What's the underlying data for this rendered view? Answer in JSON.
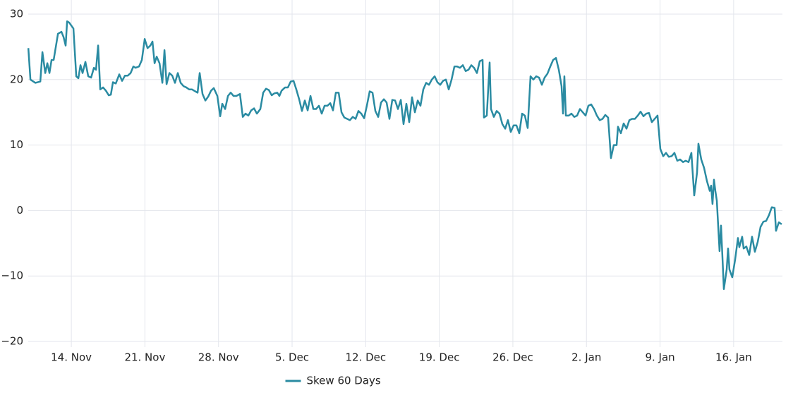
{
  "chart_data": {
    "type": "line",
    "series": [
      {
        "name": "Skew 60 Days",
        "color": "#2a8ba2",
        "x": [
          9.91,
          10.11,
          10.58,
          11.05,
          11.25,
          11.52,
          11.72,
          11.92,
          12.12,
          12.32,
          12.73,
          13.06,
          13.26,
          13.46,
          13.6,
          13.8,
          14.2,
          14.47,
          14.67,
          14.87,
          15.07,
          15.34,
          15.61,
          15.88,
          16.15,
          16.35,
          16.55,
          16.75,
          17.02,
          17.29,
          17.56,
          17.76,
          17.96,
          18.23,
          18.56,
          18.83,
          19.1,
          19.37,
          19.64,
          19.9,
          20.11,
          20.44,
          20.71,
          20.98,
          21.25,
          21.52,
          21.72,
          21.92,
          22.12,
          22.39,
          22.66,
          22.86,
          23.06,
          23.33,
          23.6,
          23.86,
          24.13,
          24.4,
          24.67,
          24.94,
          25.21,
          25.47,
          26.01,
          26.21,
          26.48,
          26.75,
          27.02,
          27.29,
          27.55,
          27.89,
          28.16,
          28.36,
          28.63,
          28.9,
          29.16,
          29.43,
          29.7,
          30.04,
          30.31,
          30.57,
          30.84,
          31.11,
          31.38,
          31.65,
          31.98,
          32.25,
          32.52,
          32.79,
          33.06,
          33.32,
          33.59,
          33.79,
          34.0,
          34.33,
          34.6,
          34.87,
          35.14,
          35.4,
          35.67,
          35.94,
          36.21,
          36.48,
          36.75,
          37.02,
          37.28,
          37.55,
          37.82,
          38.09,
          38.36,
          38.63,
          38.89,
          39.16,
          39.43,
          39.7,
          39.97,
          40.24,
          40.5,
          40.77,
          41.04,
          41.31,
          41.58,
          41.85,
          42.11,
          42.38,
          42.65,
          42.92,
          43.19,
          43.46,
          43.73,
          43.99,
          44.26,
          44.53,
          44.8,
          45.07,
          45.34,
          45.6,
          45.87,
          46.14,
          46.41,
          46.68,
          46.95,
          47.21,
          47.48,
          47.75,
          48.02,
          48.29,
          48.56,
          48.82,
          49.09,
          49.36,
          49.63,
          49.9,
          50.17,
          50.44,
          50.7,
          50.97,
          51.24,
          51.51,
          51.78,
          52.05,
          52.31,
          52.58,
          52.85,
          53.12,
          53.25,
          53.52,
          53.79,
          53.92,
          54.19,
          54.46,
          54.73,
          55.0,
          55.27,
          55.53,
          55.8,
          56.07,
          56.34,
          56.61,
          56.88,
          57.14,
          57.41,
          57.68,
          57.95,
          58.22,
          58.49,
          58.76,
          59.02,
          59.29,
          59.56,
          59.83,
          60.1,
          60.37,
          60.63,
          60.77,
          60.9,
          61.04,
          61.31,
          61.57,
          61.84,
          62.11,
          62.38,
          62.65,
          62.92,
          63.18,
          63.45,
          63.72,
          63.99,
          64.26,
          64.53,
          64.79,
          65.06,
          65.33,
          65.6,
          65.87,
          66.0,
          66.27,
          66.54,
          66.81,
          67.08,
          67.34,
          67.61,
          67.88,
          68.15,
          68.42,
          68.69,
          68.95,
          69.22,
          69.49,
          69.76,
          70.03,
          70.3,
          70.57,
          70.83,
          71.1,
          71.37,
          71.64,
          71.91,
          72.18,
          72.44,
          72.71,
          72.98,
          73.25,
          73.52,
          73.65,
          73.92,
          74.19,
          74.46,
          74.73,
          74.86,
          74.99,
          75.13,
          75.26,
          75.4,
          75.66,
          75.8,
          76.07,
          76.34,
          76.47,
          76.6,
          76.87,
          77.14,
          77.41,
          77.54,
          77.81,
          77.95,
          78.21,
          78.48,
          78.75,
          79.02,
          79.29,
          79.56,
          79.83,
          80.09,
          80.36,
          80.63,
          80.9,
          81.03,
          81.3,
          81.57
        ],
        "values": [
          24.8,
          20,
          19.5,
          19.7,
          24.2,
          21,
          22.5,
          21,
          23,
          23,
          27,
          27.3,
          26.5,
          25.2,
          28.9,
          28.7,
          27.8,
          20.5,
          20.2,
          22.2,
          21,
          22.7,
          20.5,
          20.3,
          21.8,
          21.5,
          25.2,
          18.5,
          18.8,
          18.3,
          17.6,
          17.7,
          19.6,
          19.4,
          20.8,
          19.8,
          20.6,
          20.6,
          21,
          22,
          21.8,
          22,
          23,
          26.2,
          24.8,
          25.2,
          25.8,
          22.5,
          23.5,
          22.5,
          19.5,
          24.5,
          19.3,
          21,
          20.6,
          19.5,
          21,
          19.5,
          19,
          18.8,
          18.5,
          18.5,
          18,
          21,
          17.8,
          16.8,
          17.4,
          18.3,
          18.7,
          17.5,
          14.4,
          16.3,
          15.5,
          17.5,
          18,
          17.5,
          17.5,
          17.8,
          14.3,
          14.8,
          14.5,
          15.3,
          15.6,
          14.8,
          15.5,
          18,
          18.6,
          18.4,
          17.6,
          17.9,
          18,
          17.5,
          18.3,
          18.8,
          18.8,
          19.7,
          19.8,
          18.5,
          17,
          15.2,
          16.8,
          15.3,
          17.5,
          15.5,
          15.5,
          16,
          14.8,
          16,
          16,
          16.4,
          15.3,
          18,
          18,
          15,
          14.2,
          14,
          13.8,
          14.3,
          14,
          15.2,
          14.8,
          14.1,
          16,
          18.2,
          18,
          15.2,
          14.3,
          16.5,
          17,
          16.5,
          14,
          16.9,
          16.8,
          15.5,
          16.9,
          13.2,
          16.3,
          13.5,
          17.3,
          15,
          16.8,
          16,
          18.5,
          19.5,
          19.2,
          20,
          20.5,
          19.6,
          19.2,
          19.8,
          20,
          18.5,
          20,
          22,
          22,
          21.8,
          22.2,
          21.3,
          21.5,
          22.2,
          21.8,
          21,
          22.8,
          23,
          14.2,
          14.5,
          22.6,
          15.5,
          14.3,
          15.2,
          14.8,
          13.2,
          12.5,
          13.8,
          12,
          13,
          13,
          11.8,
          14.8,
          14.5,
          12.6,
          20.5,
          20,
          20.5,
          20.3,
          19.2,
          20.3,
          20.9,
          22,
          23,
          23.3,
          21.5,
          19,
          14.8,
          20.5,
          14.5,
          14.5,
          14.8,
          14.3,
          14.5,
          15.5,
          15,
          14.5,
          16,
          16.2,
          15.5,
          14.5,
          13.8,
          14,
          14.6,
          14.2,
          8,
          10,
          10,
          12.8,
          11.8,
          13.3,
          12.5,
          13.8,
          14,
          14,
          14.5,
          15.1,
          14.4,
          14.8,
          14.9,
          13.5,
          14,
          14.5,
          9.4,
          8.3,
          8.8,
          8.2,
          8.3,
          8.8,
          7.6,
          7.8,
          7.4,
          7.6,
          7.4,
          8.8,
          2.3,
          5.8,
          10.2,
          7.8,
          6.5,
          4.5,
          3,
          3.8,
          1,
          4.7,
          3,
          1.5,
          -6.2,
          -2.3,
          -12,
          -9,
          -5.8,
          -9,
          -10.2,
          -7.5,
          -4.2,
          -5.6,
          -4,
          -5.8,
          -5.5,
          -6.8,
          -4,
          -6.3,
          -4.8,
          -2.5,
          -1.7,
          -1.6,
          -0.7,
          0.5,
          0.4,
          -3.1,
          -1.8,
          -2.1
        ]
      }
    ],
    "xlim": [
      9.9,
      81.64
    ],
    "xticks": [
      {
        "value": 14,
        "label": "14. Nov"
      },
      {
        "value": 21,
        "label": "21. Nov"
      },
      {
        "value": 28,
        "label": "28. Nov"
      },
      {
        "value": 35,
        "label": "5. Dec"
      },
      {
        "value": 42,
        "label": "12. Dec"
      },
      {
        "value": 49,
        "label": "19. Dec"
      },
      {
        "value": 56,
        "label": "26. Dec"
      },
      {
        "value": 63,
        "label": "2. Jan"
      },
      {
        "value": 70,
        "label": "9. Jan"
      },
      {
        "value": 77,
        "label": "16. Jan"
      }
    ],
    "ylim": [
      -20,
      30
    ],
    "yticks": [
      30,
      20,
      10,
      0,
      {
        "value": -10,
        "label": "−10"
      },
      {
        "value": -20,
        "label": "−20"
      }
    ],
    "grid": true,
    "legend": "bottom"
  }
}
